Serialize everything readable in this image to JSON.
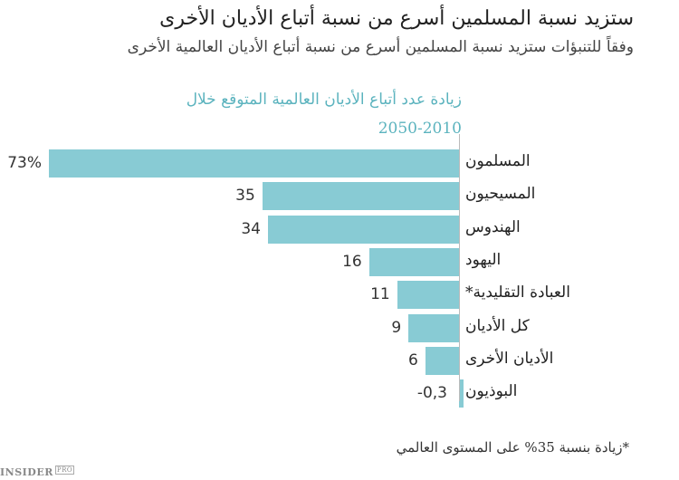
{
  "header": {
    "title": "ستزيد نسبة المسلمين أسرع من نسبة أتباع الأديان الأخرى",
    "subtitle": "وفقاً للتنبؤات ستزيد نسبة المسلمين أسرع من نسبة أتباع الأديان العالمية الأخرى"
  },
  "chart_title_line1": "زيادة عدد أتباع الأديان العالمية المتوقع خلال",
  "chart_title_line2": "2050-2010",
  "footnote": "*زيادة بنسبة 35% على المستوى العالمي",
  "logo": {
    "main": "INSIDER",
    "badge": "PRO"
  },
  "chart_data": {
    "type": "bar",
    "orientation": "horizontal",
    "title": "زيادة عدد أتباع الأديان العالمية المتوقع خلال 2050-2010",
    "categories": [
      "المسلمون",
      "المسيحيون",
      "الهندوس",
      "اليهود",
      "العبادة التقليدية*",
      "كل الأديان",
      "الأديان الأخرى",
      "البوذيون"
    ],
    "values": [
      73,
      35,
      34,
      16,
      11,
      9,
      6,
      -0.3
    ],
    "value_labels": [
      "73%",
      "35",
      "34",
      "16",
      "11",
      "9",
      "6",
      "-0,3"
    ],
    "xlabel": "",
    "ylabel": "",
    "unit": "%",
    "bar_color": "#88cbd4",
    "grid": false,
    "legend": null
  }
}
